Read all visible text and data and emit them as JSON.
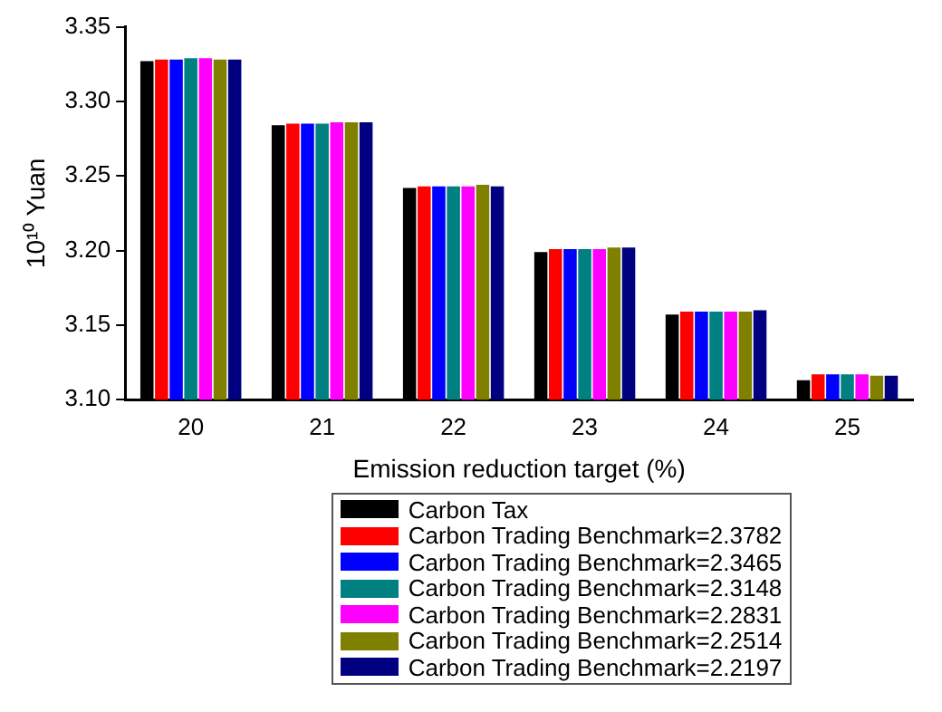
{
  "chart_data": {
    "type": "bar",
    "xlabel": "Emission reduction target (%)",
    "ylabel": "10¹⁰ Yuan",
    "categories": [
      "20",
      "21",
      "22",
      "23",
      "24",
      "25"
    ],
    "series": [
      {
        "name": "Carbon Tax",
        "color": "#000000",
        "values": [
          3.327,
          3.284,
          3.242,
          3.199,
          3.157,
          3.113
        ]
      },
      {
        "name": "Carbon Trading Benchmark=2.3782",
        "color": "#ff0000",
        "values": [
          3.328,
          3.285,
          3.243,
          3.201,
          3.159,
          3.117
        ]
      },
      {
        "name": "Carbon Trading Benchmark=2.3465",
        "color": "#0000ff",
        "values": [
          3.328,
          3.285,
          3.243,
          3.201,
          3.159,
          3.117
        ]
      },
      {
        "name": "Carbon Trading Benchmark=2.3148",
        "color": "#008080",
        "values": [
          3.329,
          3.285,
          3.243,
          3.201,
          3.159,
          3.117
        ]
      },
      {
        "name": "Carbon Trading Benchmark=2.2831",
        "color": "#ff00ff",
        "values": [
          3.329,
          3.286,
          3.243,
          3.201,
          3.159,
          3.117
        ]
      },
      {
        "name": "Carbon Trading Benchmark=2.2514",
        "color": "#808000",
        "values": [
          3.328,
          3.286,
          3.244,
          3.202,
          3.159,
          3.116
        ]
      },
      {
        "name": "Carbon Trading Benchmark=2.2197",
        "color": "#000080",
        "values": [
          3.328,
          3.286,
          3.243,
          3.202,
          3.16,
          3.116
        ]
      }
    ],
    "ylim": [
      3.1,
      3.35
    ],
    "yticks": [
      {
        "value": 3.1,
        "label": "3.10"
      },
      3.15,
      {
        "value": 3.2,
        "label": "3.20"
      },
      3.25,
      {
        "value": 3.3,
        "label": "3.30"
      },
      3.35
    ],
    "grid": false,
    "legend": "bottom"
  }
}
